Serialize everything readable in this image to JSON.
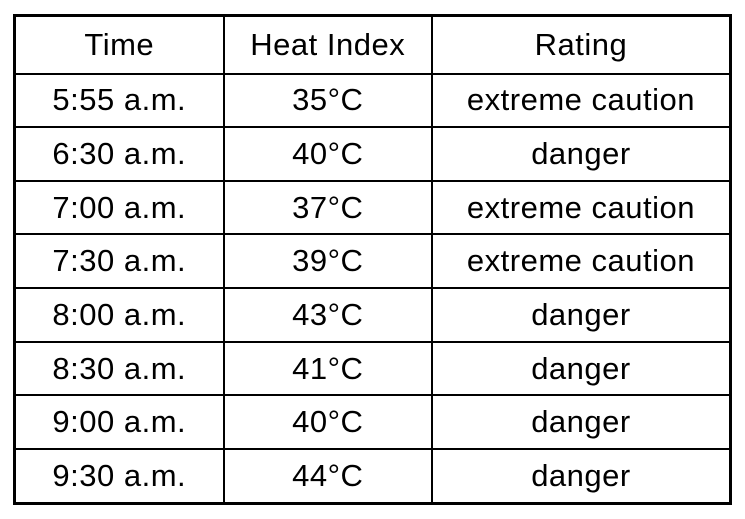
{
  "colors": {
    "background": "#ffffff",
    "text": "#000000",
    "border": "#000000"
  },
  "chart_data": {
    "type": "table",
    "columns": [
      "Time",
      "Heat Index",
      "Rating"
    ],
    "rows": [
      [
        "5:55 a.m.",
        "35°C",
        "extreme caution"
      ],
      [
        "6:30 a.m.",
        "40°C",
        "danger"
      ],
      [
        "7:00 a.m.",
        "37°C",
        "extreme caution"
      ],
      [
        "7:30 a.m.",
        "39°C",
        "extreme caution"
      ],
      [
        "8:00 a.m.",
        "43°C",
        "danger"
      ],
      [
        "8:30 a.m.",
        "41°C",
        "danger"
      ],
      [
        "9:00 a.m.",
        "40°C",
        "danger"
      ],
      [
        "9:30 a.m.",
        "44°C",
        "danger"
      ]
    ],
    "heat_index_values_c": [
      35,
      40,
      37,
      39,
      43,
      41,
      40,
      44
    ],
    "rating_categories": [
      "extreme caution",
      "danger"
    ]
  }
}
